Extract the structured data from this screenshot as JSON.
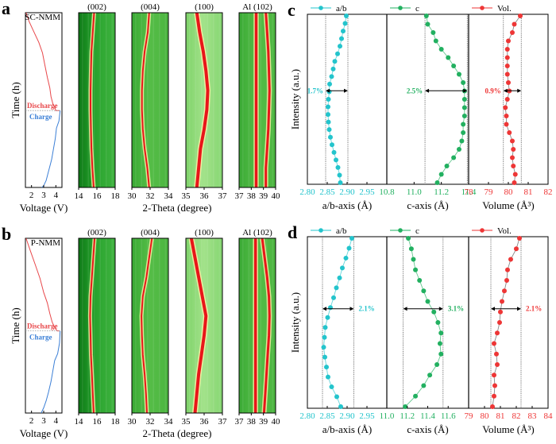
{
  "figure": {
    "panel_labels": [
      "a",
      "b",
      "c",
      "d"
    ]
  },
  "chart_data": [
    {
      "panel": "a",
      "type": "line",
      "sample": "SC-NMM",
      "xlabel": "Voltage (V)",
      "ylabel": "Time (h)",
      "xlim": [
        1.5,
        4.5
      ],
      "xticks": [
        "2",
        "3",
        "4"
      ],
      "annotations": {
        "discharge": "Discharge",
        "charge": "Charge"
      },
      "series": [
        {
          "name": "Discharge",
          "color": "#e8474a",
          "voltage": [
            1.55,
            1.8,
            2.2,
            2.6,
            2.9,
            3.1,
            3.3,
            3.5,
            3.6,
            3.75,
            3.9,
            4.0,
            4.3
          ],
          "time_frac": [
            0.0,
            0.05,
            0.11,
            0.17,
            0.23,
            0.3,
            0.37,
            0.43,
            0.48,
            0.52,
            0.54,
            0.56,
            0.56
          ]
        },
        {
          "name": "Charge",
          "color": "#3b7fd6",
          "voltage": [
            4.35,
            4.25,
            4.05,
            3.95,
            3.8,
            3.65,
            3.5,
            3.35,
            3.2,
            3.0,
            2.85
          ],
          "time_frac": [
            0.56,
            0.62,
            0.66,
            0.72,
            0.78,
            0.84,
            0.88,
            0.92,
            0.96,
            0.99,
            1.0
          ]
        }
      ]
    },
    {
      "panel": "a-heatmaps",
      "type": "heatmap",
      "xlabel": "2-Theta (degree)",
      "peaks": [
        {
          "title": "(002)",
          "xlim": [
            14,
            18
          ],
          "xticks": [
            "14",
            "16",
            "18"
          ],
          "center": [
            15.7,
            15.55,
            15.4,
            15.35,
            15.3,
            15.3,
            15.35,
            15.4,
            15.5,
            15.65
          ],
          "bg": "dark"
        },
        {
          "title": "(004)",
          "xlim": [
            30,
            34
          ],
          "xticks": [
            "30",
            "32",
            "34"
          ],
          "center": [
            31.9,
            31.75,
            31.4,
            31.2,
            31.1,
            31.1,
            31.2,
            31.4,
            31.7,
            31.9
          ],
          "bg": "mid"
        },
        {
          "title": "(100)",
          "xlim": [
            35,
            37
          ],
          "xticks": [
            "35",
            "36",
            "37"
          ],
          "center": [
            35.6,
            35.75,
            35.95,
            36.1,
            36.2,
            36.15,
            36.0,
            35.8,
            35.7,
            35.6
          ],
          "bg": "light"
        },
        {
          "title": "Al (102)",
          "xlim": [
            37,
            40
          ],
          "xticks": [
            "37",
            "38",
            "39",
            "40"
          ],
          "center": [
            38.4,
            38.4,
            38.4,
            38.4,
            38.4,
            38.4,
            38.4,
            38.4,
            38.4,
            38.4
          ],
          "center2": [
            39.2,
            39.3,
            39.4,
            39.45,
            39.5,
            39.45,
            39.4,
            39.3,
            39.2,
            39.2
          ],
          "bg": "mid"
        }
      ]
    },
    {
      "panel": "b",
      "type": "line",
      "sample": "P-NMM",
      "xlabel": "Voltage (V)",
      "ylabel": "Time (h)",
      "xlim": [
        1.5,
        4.5
      ],
      "xticks": [
        "2",
        "3",
        "4"
      ],
      "annotations": {
        "discharge": "Discharge",
        "charge": "Charge"
      },
      "series": [
        {
          "name": "Discharge",
          "color": "#e8474a",
          "voltage": [
            1.55,
            1.9,
            2.3,
            2.7,
            3.0,
            3.3,
            3.5,
            3.7,
            3.9,
            4.1,
            4.3
          ],
          "time_frac": [
            0.0,
            0.07,
            0.15,
            0.23,
            0.31,
            0.37,
            0.43,
            0.48,
            0.51,
            0.53,
            0.53
          ]
        },
        {
          "name": "Charge",
          "color": "#3b7fd6",
          "voltage": [
            4.35,
            4.3,
            4.15,
            3.9,
            3.75,
            3.6,
            3.4,
            3.2,
            3.0,
            2.8
          ],
          "time_frac": [
            0.53,
            0.6,
            0.66,
            0.7,
            0.76,
            0.82,
            0.88,
            0.93,
            0.97,
            1.0
          ]
        }
      ]
    },
    {
      "panel": "b-heatmaps",
      "type": "heatmap",
      "xlabel": "2-Theta (degree)",
      "peaks": [
        {
          "title": "(002)",
          "xlim": [
            14,
            18
          ],
          "xticks": [
            "14",
            "16",
            "18"
          ],
          "center": [
            15.75,
            15.6,
            15.45,
            15.3,
            15.25,
            15.3,
            15.35,
            15.45,
            15.55,
            15.65
          ],
          "bg": "dark"
        },
        {
          "title": "(004)",
          "xlim": [
            30,
            34
          ],
          "xticks": [
            "30",
            "32",
            "34"
          ],
          "center": [
            32.2,
            31.9,
            31.6,
            31.2,
            31.05,
            31.1,
            31.2,
            31.4,
            31.55,
            31.65
          ],
          "bg": "mid"
        },
        {
          "title": "(100)",
          "xlim": [
            35,
            37
          ],
          "xticks": [
            "35",
            "36",
            "37"
          ],
          "center": [
            35.3,
            35.5,
            35.7,
            35.9,
            36.1,
            36.0,
            35.85,
            35.7,
            35.6,
            35.5
          ],
          "bg": "light"
        },
        {
          "title": "Al (102)",
          "xlim": [
            37,
            40
          ],
          "xticks": [
            "37",
            "38",
            "39",
            "40"
          ],
          "center": [
            38.35,
            38.35,
            38.35,
            38.35,
            38.35,
            38.35,
            38.35,
            38.35,
            38.35,
            38.35
          ],
          "center2": [
            38.9,
            39.1,
            39.3,
            39.45,
            39.5,
            39.45,
            39.35,
            39.25,
            39.15,
            39.05
          ],
          "bg": "mid"
        }
      ]
    },
    {
      "panel": "c",
      "type": "scatter",
      "ylabel": "Intensity (a.u.)",
      "legend": [
        "a/b",
        "c",
        "Vol."
      ],
      "subplots": [
        {
          "name": "a/b",
          "xlabel": "a/b-axis (Å)",
          "xlim": [
            2.8,
            3.0
          ],
          "xticks": [
            "2.80",
            "2.85",
            "2.90",
            "2.95"
          ],
          "color": "#23c4cc",
          "values": [
            2.898,
            2.895,
            2.89,
            2.886,
            2.882,
            2.876,
            2.869,
            2.865,
            2.861,
            2.856,
            2.855,
            2.853,
            2.852,
            2.852,
            2.853,
            2.855,
            2.858,
            2.862,
            2.867,
            2.872,
            2.877,
            2.881,
            2.883
          ],
          "bounds": [
            2.846,
            2.902
          ],
          "change": "1.7%"
        },
        {
          "name": "c",
          "xlabel": "c-axis (Å)",
          "xlim": [
            10.8,
            11.4
          ],
          "xticks": [
            "10.8",
            "11.0",
            "11.2",
            "11.4"
          ],
          "color": "#22b060",
          "values": [
            11.09,
            11.1,
            11.14,
            11.16,
            11.2,
            11.25,
            11.29,
            11.33,
            11.36,
            11.37,
            11.37,
            11.37,
            11.37,
            11.36,
            11.36,
            11.35,
            11.33,
            11.29,
            11.24,
            11.2,
            11.17
          ],
          "bounds": [
            11.08,
            11.39
          ],
          "change": "2.5%"
        },
        {
          "name": "Vol.",
          "xlabel": "Volume (Å³)",
          "xlim": [
            78,
            82
          ],
          "xticks": [
            "78",
            "79",
            "80",
            "81",
            "82"
          ],
          "color": "#ee3636",
          "values": [
            80.6,
            80.3,
            80.2,
            80.0,
            79.95,
            79.95,
            79.95,
            79.95,
            80.0,
            80.05,
            79.95,
            79.85,
            79.9,
            79.9,
            80.05,
            80.2,
            80.25,
            80.2,
            80.25,
            80.35,
            80.3
          ],
          "bounds": [
            79.75,
            80.65
          ],
          "change": "0.9%"
        }
      ]
    },
    {
      "panel": "d",
      "type": "scatter",
      "ylabel": "Intensity (a.u.)",
      "legend": [
        "a/b",
        "c",
        "Vol."
      ],
      "subplots": [
        {
          "name": "a/b",
          "xlabel": "a/b-axis (Å)",
          "xlim": [
            2.8,
            3.0
          ],
          "xticks": [
            "2.80",
            "2.85",
            "2.90",
            "2.95"
          ],
          "color": "#23c4cc",
          "values": [
            2.912,
            2.905,
            2.897,
            2.888,
            2.881,
            2.873,
            2.866,
            2.858,
            2.851,
            2.845,
            2.843,
            2.841,
            2.844,
            2.848,
            2.852,
            2.861,
            2.874,
            2.884
          ],
          "bounds": [
            2.838,
            2.917
          ],
          "change": "2.1%"
        },
        {
          "name": "c",
          "xlabel": "c-axis (Å)",
          "xlim": [
            11.0,
            11.8
          ],
          "xticks": [
            "11.0",
            "11.2",
            "11.4",
            "11.6"
          ],
          "color": "#22b060",
          "values": [
            11.21,
            11.24,
            11.26,
            11.28,
            11.32,
            11.36,
            11.4,
            11.46,
            11.5,
            11.53,
            11.52,
            11.53,
            11.49,
            11.42,
            11.36,
            11.28,
            11.18
          ],
          "bounds": [
            11.16,
            11.55
          ],
          "change": "3.1%"
        },
        {
          "name": "Vol.",
          "xlabel": "Volume (Å³)",
          "xlim": [
            79,
            84
          ],
          "xticks": [
            "79",
            "80",
            "81",
            "82",
            "83",
            "84"
          ],
          "color": "#ee3636",
          "values": [
            82.2,
            82.0,
            81.65,
            81.45,
            81.4,
            81.25,
            81.1,
            81.0,
            80.95,
            80.8,
            80.6,
            80.75,
            80.8,
            80.6,
            80.65,
            80.6,
            80.5
          ],
          "bounds": [
            80.4,
            82.3
          ],
          "change": "2.1%"
        }
      ]
    }
  ]
}
